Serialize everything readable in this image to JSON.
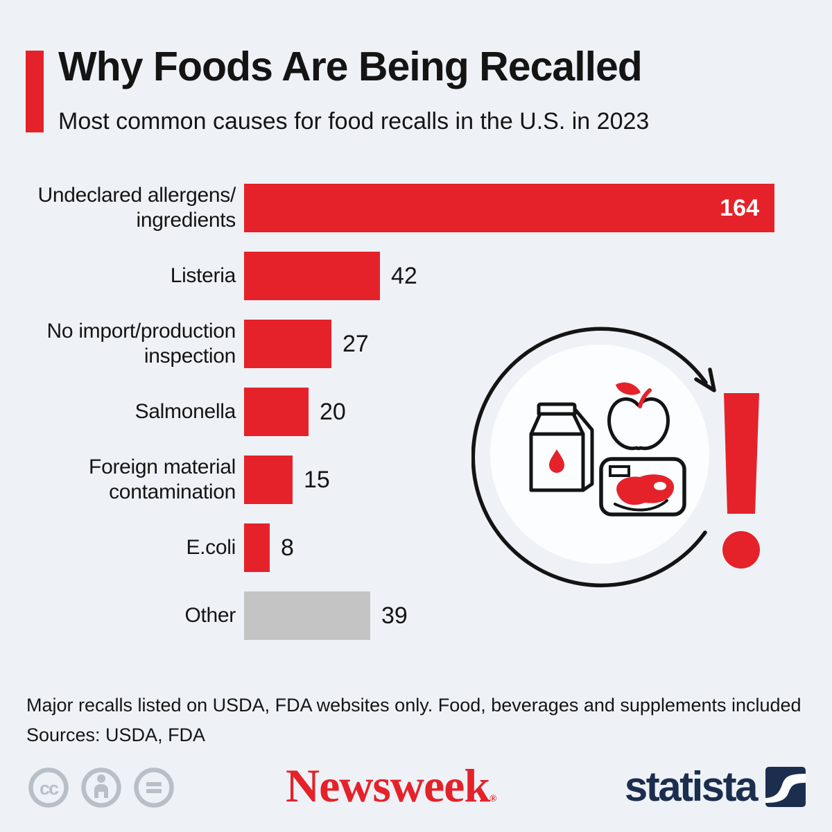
{
  "header": {
    "title": "Why Foods Are Being Recalled",
    "subtitle": "Most common causes for food recalls in the U.S. in 2023"
  },
  "chart_data": {
    "type": "bar",
    "orientation": "horizontal",
    "title": "Why Foods Are Being Recalled",
    "subtitle": "Most common causes for food recalls in the U.S. in 2023",
    "categories": [
      "Undeclared allergens/ingredients",
      "Listeria",
      "No import/production inspection",
      "Salmonella",
      "Foreign material contamination",
      "E.coli",
      "Other"
    ],
    "values": [
      164,
      42,
      27,
      20,
      15,
      8,
      39
    ],
    "xlim": [
      0,
      164
    ],
    "grid": false,
    "legend": false,
    "bars": [
      {
        "label_lines": [
          "Undeclared allergens/",
          "ingredients"
        ],
        "value": 164,
        "color": "#e5222a",
        "value_inside": true,
        "value_color": "#ffffff"
      },
      {
        "label_lines": [
          "Listeria"
        ],
        "value": 42,
        "color": "#e5222a",
        "value_inside": false,
        "value_color": "#141414"
      },
      {
        "label_lines": [
          "No import/production",
          "inspection"
        ],
        "value": 27,
        "color": "#e5222a",
        "value_inside": false,
        "value_color": "#141414"
      },
      {
        "label_lines": [
          "Salmonella"
        ],
        "value": 20,
        "color": "#e5222a",
        "value_inside": false,
        "value_color": "#141414"
      },
      {
        "label_lines": [
          "Foreign material",
          "contamination"
        ],
        "value": 15,
        "color": "#e5222a",
        "value_inside": false,
        "value_color": "#141414"
      },
      {
        "label_lines": [
          "E.coli"
        ],
        "value": 8,
        "color": "#e5222a",
        "value_inside": false,
        "value_color": "#141414"
      },
      {
        "label_lines": [
          "Other"
        ],
        "value": 39,
        "color": "#c4c4c4",
        "value_inside": false,
        "value_color": "#141414"
      }
    ]
  },
  "illustration": {
    "icons": [
      "recall-cycle-arrow",
      "milk-carton",
      "apple",
      "packaged-meat",
      "exclamation-mark"
    ]
  },
  "footer": {
    "note": "Major recalls listed on USDA, FDA websites only. Food, beverages and supplements included",
    "sources": "Sources: USDA, FDA"
  },
  "branding": {
    "newsweek": "Newsweek",
    "registered_mark": "®",
    "statista": "statista",
    "license_icons": [
      "cc",
      "attribution",
      "no-derivatives"
    ]
  },
  "colors": {
    "accent_red": "#e5222a",
    "other_gray": "#c4c4c4",
    "statista_navy": "#1c2e4e",
    "license_gray": "#b8bfc7",
    "background": "#eef2f7"
  }
}
